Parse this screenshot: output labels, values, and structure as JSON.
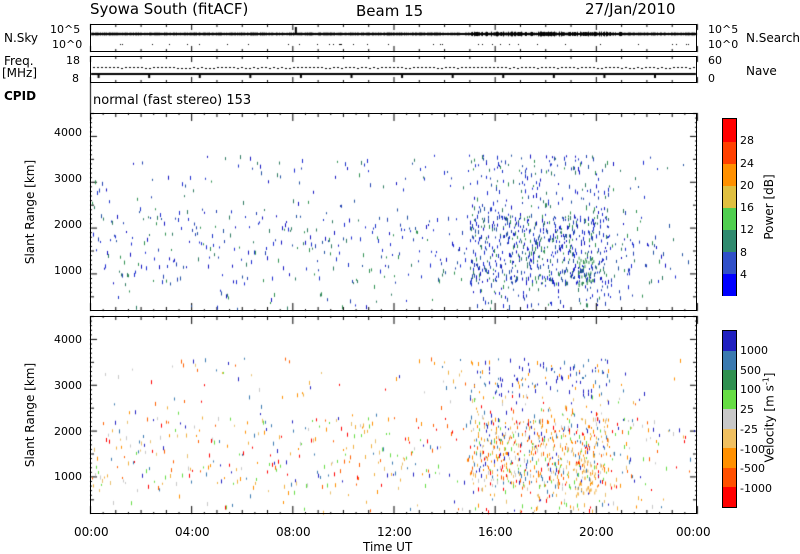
{
  "header": {
    "station": "Syowa South (fitACF)",
    "beam": "Beam 15",
    "date": "27/Jan/2010"
  },
  "status_panel": {
    "left_top": "N.Sky",
    "left_mid": "Freq.",
    "left_unit": "[MHz]",
    "left_bottom": "CPID",
    "right_top": "N.Search",
    "right_mid": "Nave",
    "sky_ticks": [
      "10^5",
      "10^0"
    ],
    "freq_ticks": [
      "18",
      "8"
    ],
    "nave_ticks": [
      "60",
      "0"
    ],
    "search_ticks": [
      "10^5",
      "10^0"
    ],
    "cpid_text": "normal (fast stereo) 153"
  },
  "chart_data": [
    {
      "type": "heatmap",
      "name": "power",
      "ylabel": "Slant Range [km]",
      "ytick_labels": [
        "1000",
        "2000",
        "3000",
        "4000"
      ],
      "ylim": [
        180,
        4500
      ],
      "xlim_hours": [
        0,
        24
      ],
      "colorbar": {
        "label": "Power [dB]",
        "ticks": [
          "4",
          "8",
          "12",
          "16",
          "20",
          "24",
          "28"
        ],
        "colors": [
          "#0000ff",
          "#3050c8",
          "#2f8a6e",
          "#4fcf4f",
          "#e0c040",
          "#ff9000",
          "#ff4000",
          "#ff0000"
        ]
      }
    },
    {
      "type": "heatmap",
      "name": "velocity",
      "ylabel": "Slant Range [km]",
      "ytick_labels": [
        "1000",
        "2000",
        "3000",
        "4000"
      ],
      "ylim": [
        180,
        4500
      ],
      "xlim_hours": [
        0,
        24
      ],
      "xlabel": "Time UT",
      "xtick_labels": [
        "00:00",
        "04:00",
        "08:00",
        "12:00",
        "16:00",
        "20:00",
        "00:00"
      ],
      "colorbar": {
        "label": "Velocity [m s",
        "label_sup": "-1",
        "label_end": "]",
        "ticks": [
          "1000",
          "500",
          "100",
          "25",
          "-25",
          "-100",
          "-500",
          "-1000"
        ],
        "colors": [
          "#2020c0",
          "#3a7ab0",
          "#2f9050",
          "#66dd44",
          "#c8c8c8",
          "#f0c060",
          "#ff9000",
          "#ff5000",
          "#ff0000"
        ]
      }
    }
  ]
}
